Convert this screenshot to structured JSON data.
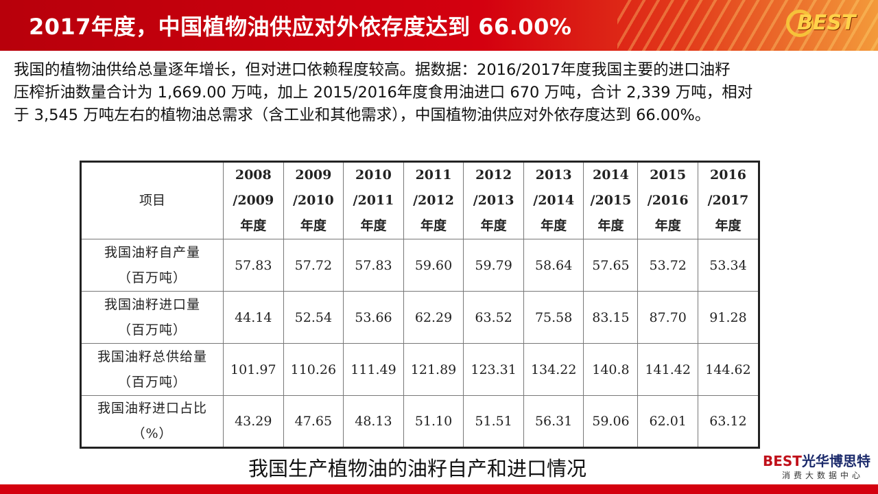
{
  "title": "2017年度，中国植物油供应对外依存度达到 66.00%",
  "logo_text": "BEST",
  "paragraph": [
    "我国的植物油供给总量逐年增长，但对进口依赖程度较高。据数据：2016/2017年度我国主要的进口油籽",
    "压榨折油数量合计为 1,669.00 万吨，加上 2015/2016年度食用油进口 670 万吨，合计 2,339 万吨，相对",
    "于 3,545 万吨左右的植物油总需求（含工业和其他需求），中国植物油供应对外依存度达到 66.00%。"
  ],
  "table": {
    "item_header": "项目",
    "year_suffix": "年度",
    "years": [
      [
        "2008",
        "/2009"
      ],
      [
        "2009",
        "/2010"
      ],
      [
        "2010",
        "/2011"
      ],
      [
        "2011",
        "/2012"
      ],
      [
        "2012",
        "/2013"
      ],
      [
        "2013",
        "/2014"
      ],
      [
        "2014",
        "/2015"
      ],
      [
        "2015",
        "/2016"
      ],
      [
        "2016",
        "/2017"
      ]
    ],
    "rows": [
      {
        "label": "我国油籽自产量",
        "unit": "（百万吨）",
        "values": [
          "57.83",
          "57.72",
          "57.83",
          "59.60",
          "59.79",
          "58.64",
          "57.65",
          "53.72",
          "53.34"
        ]
      },
      {
        "label": "我国油籽进口量",
        "unit": "（百万吨）",
        "values": [
          "44.14",
          "52.54",
          "53.66",
          "62.29",
          "63.52",
          "75.58",
          "83.15",
          "87.70",
          "91.28"
        ]
      },
      {
        "label": "我国油籽总供给量",
        "unit": "（百万吨）",
        "values": [
          "101.97",
          "110.26",
          "111.49",
          "121.89",
          "123.31",
          "134.22",
          "140.8",
          "141.42",
          "144.62"
        ]
      },
      {
        "label": "我国油籽进口占比",
        "unit": "（%）",
        "values": [
          "43.29",
          "47.65",
          "48.13",
          "51.10",
          "51.51",
          "56.31",
          "59.06",
          "62.01",
          "63.12"
        ]
      }
    ]
  },
  "caption": "我国生产植物油的油籽自产和进口情况",
  "brand": {
    "latin": "BEST",
    "name": "光华博思特",
    "sub": "消费大数据中心"
  },
  "colors": {
    "header_red": "#d4000f",
    "logo_gold": "#ffd24a",
    "brand_navy": "#1b2a6b"
  }
}
